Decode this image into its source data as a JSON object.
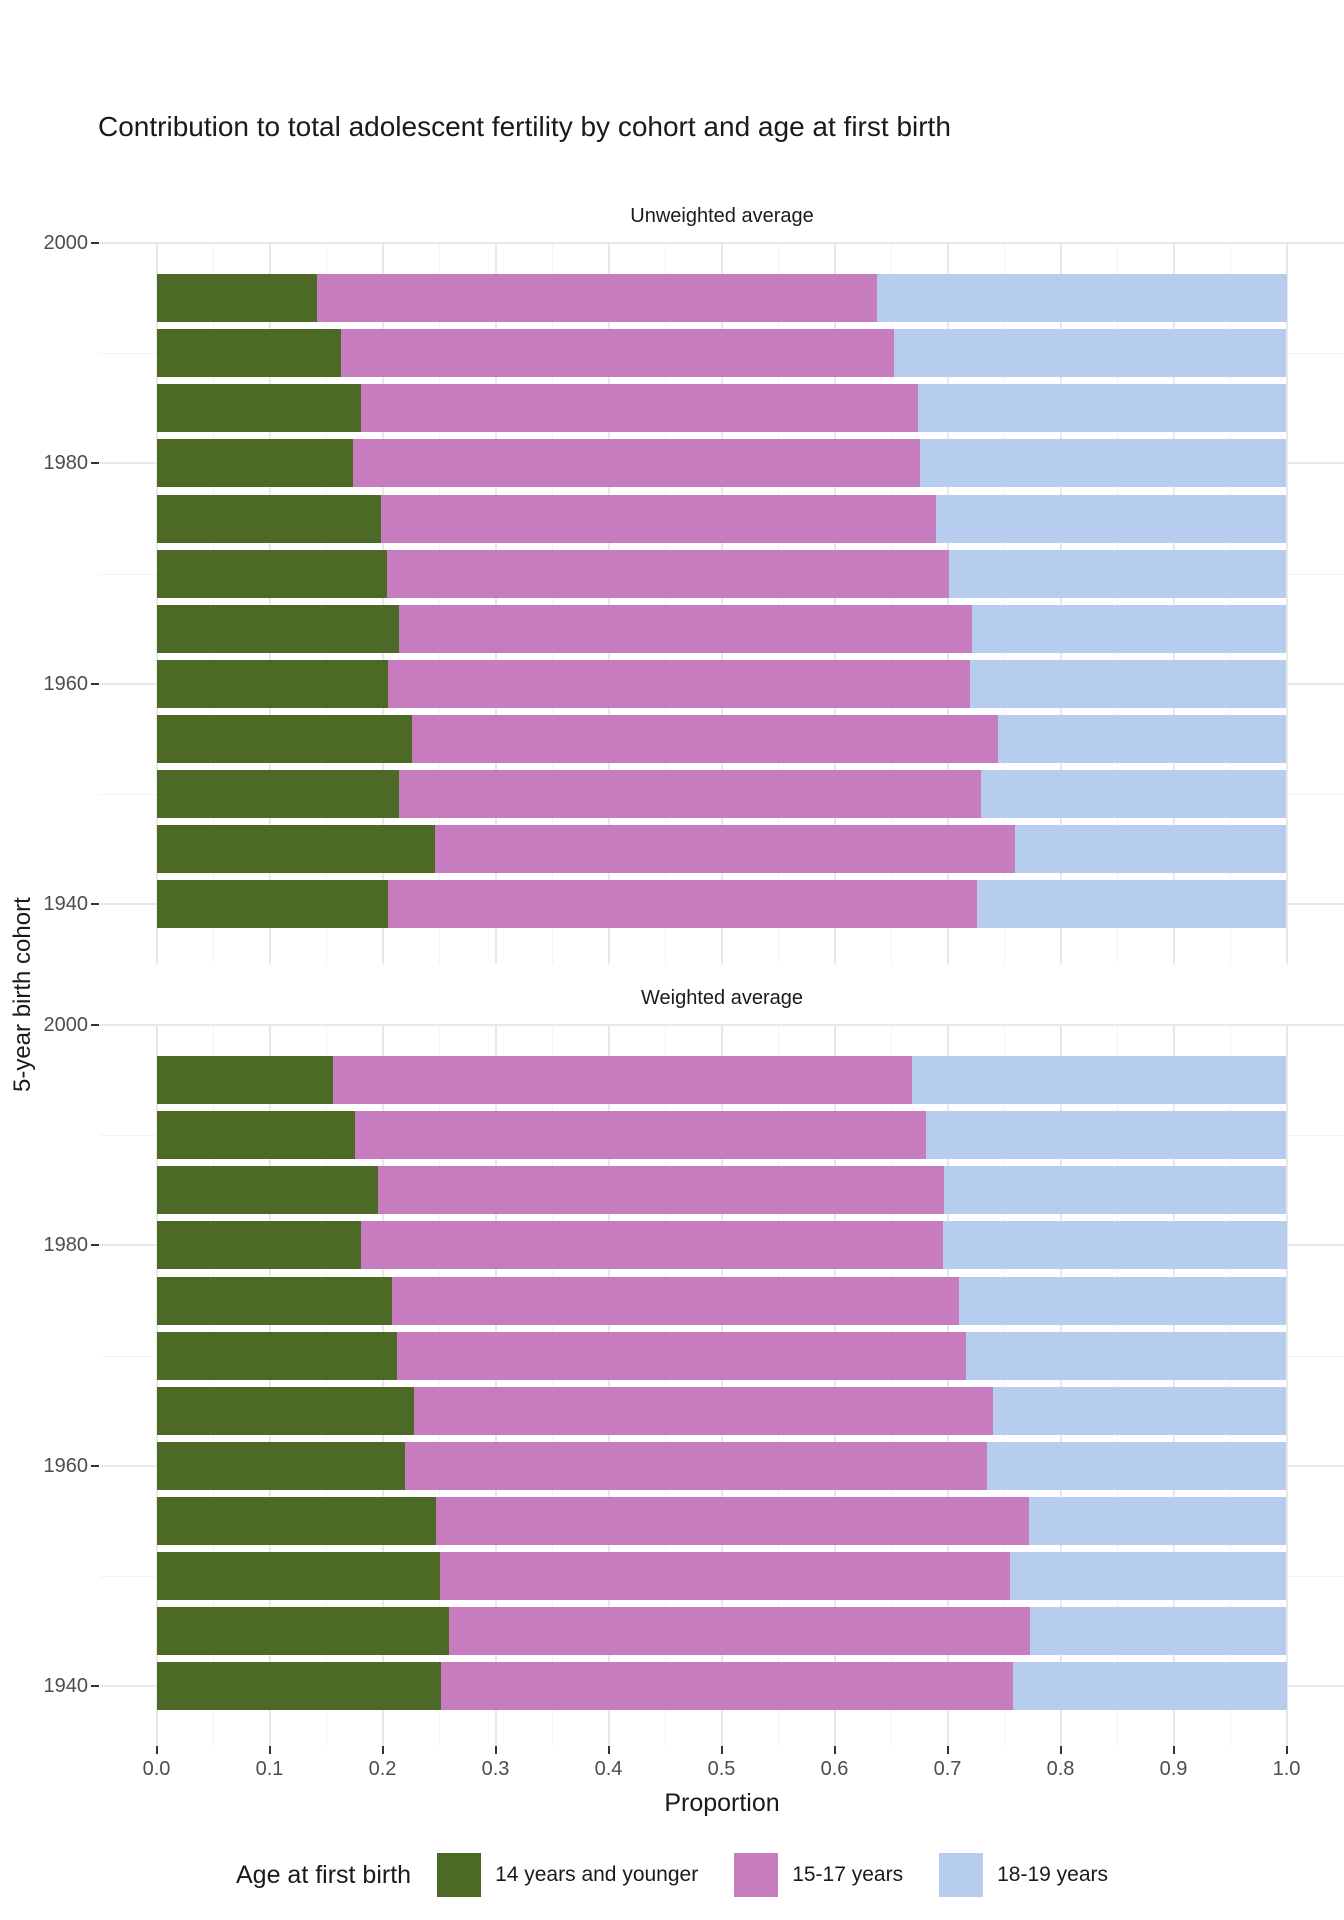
{
  "title": "Contribution to total adolescent fertility by cohort and age at first birth",
  "y_axis": {
    "title": "5-year birth cohort",
    "ticks": [
      2000,
      1980,
      1960,
      1940
    ]
  },
  "x_axis": {
    "title": "Proportion",
    "ticks": [
      "0.0",
      "0.1",
      "0.2",
      "0.3",
      "0.4",
      "0.5",
      "0.6",
      "0.7",
      "0.8",
      "0.9",
      "1.0"
    ]
  },
  "legend": {
    "title": "Age at first birth",
    "items": [
      {
        "label": "14 years and younger",
        "color": "#4d6926"
      },
      {
        "label": "15-17 years",
        "color": "#c87cc0"
      },
      {
        "label": "18-19 years",
        "color": "#b7cded"
      }
    ]
  },
  "colors": {
    "age14": "#4d6926",
    "age15_17": "#c87cc0",
    "age18_19": "#b7cded",
    "grid_major": "#e8e8e8",
    "grid_minor": "#f3f3f3",
    "tick_text": "#4d4d4d",
    "tick_mark": "#333333",
    "text": "#1a1a1a"
  },
  "chart_data": [
    {
      "type": "bar",
      "panel": "Unweighted average",
      "orientation": "horizontal",
      "stacked": true,
      "grid": true,
      "xlim": [
        0,
        1
      ],
      "xlabel": "Proportion",
      "ylabel": "5-year birth cohort",
      "categories": [
        1995,
        1990,
        1985,
        1980,
        1975,
        1970,
        1965,
        1960,
        1955,
        1950,
        1945,
        1940
      ],
      "series": [
        {
          "name": "14 years and younger",
          "values": [
            0.142,
            0.163,
            0.181,
            0.174,
            0.199,
            0.204,
            0.215,
            0.205,
            0.226,
            0.215,
            0.246,
            0.205
          ]
        },
        {
          "name": "15-17 years",
          "values": [
            0.496,
            0.49,
            0.493,
            0.502,
            0.491,
            0.497,
            0.507,
            0.515,
            0.519,
            0.515,
            0.514,
            0.521
          ]
        },
        {
          "name": "18-19 years",
          "values": [
            0.362,
            0.347,
            0.326,
            0.324,
            0.31,
            0.299,
            0.278,
            0.28,
            0.255,
            0.27,
            0.24,
            0.274
          ]
        }
      ]
    },
    {
      "type": "bar",
      "panel": "Weighted average",
      "orientation": "horizontal",
      "stacked": true,
      "grid": true,
      "xlim": [
        0,
        1
      ],
      "xlabel": "Proportion",
      "ylabel": "5-year birth cohort",
      "categories": [
        1995,
        1990,
        1985,
        1980,
        1975,
        1970,
        1965,
        1960,
        1955,
        1950,
        1945,
        1940
      ],
      "series": [
        {
          "name": "14 years and younger",
          "values": [
            0.156,
            0.176,
            0.196,
            0.181,
            0.208,
            0.213,
            0.228,
            0.22,
            0.247,
            0.251,
            0.259,
            0.252
          ]
        },
        {
          "name": "15-17 years",
          "values": [
            0.513,
            0.505,
            0.501,
            0.515,
            0.502,
            0.503,
            0.512,
            0.515,
            0.525,
            0.504,
            0.514,
            0.506
          ]
        },
        {
          "name": "18-19 years",
          "values": [
            0.331,
            0.319,
            0.303,
            0.304,
            0.29,
            0.284,
            0.26,
            0.265,
            0.228,
            0.245,
            0.227,
            0.242
          ]
        }
      ]
    }
  ]
}
